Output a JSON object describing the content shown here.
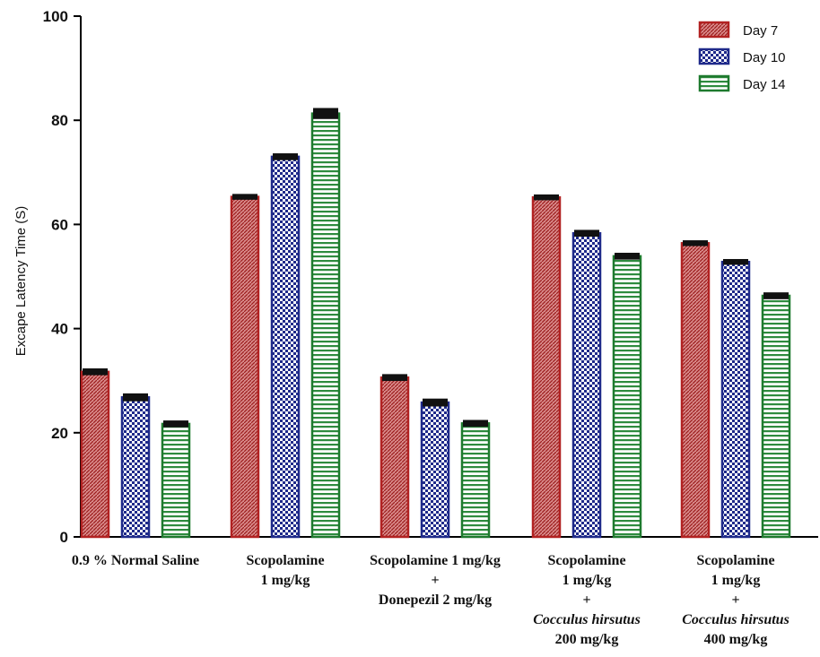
{
  "chart_data": {
    "type": "bar",
    "ylabel": "Excape Latency Time (S)",
    "ylim": [
      0,
      100
    ],
    "yticks": [
      0,
      20,
      40,
      60,
      80,
      100
    ],
    "grid": false,
    "legend_position": "top-right",
    "categories": [
      [
        "0.9 % Normal Saline"
      ],
      [
        "Scopolamine",
        "1 mg/kg"
      ],
      [
        "Scopolamine 1 mg/kg",
        "+",
        "Donepezil 2 mg/kg"
      ],
      [
        "Scopolamine",
        "1 mg/kg",
        "+",
        "Cocculus hirsutus",
        "200 mg/kg"
      ],
      [
        "Scopolamine",
        "1 mg/kg",
        "+",
        "Cocculus hirsutus",
        "400 mg/kg"
      ]
    ],
    "italic_lines": [
      "Cocculus hirsutus"
    ],
    "series": [
      {
        "name": "Day 7",
        "color": "#b22222",
        "pattern": "diagonal",
        "values": [
          31.7,
          65.3,
          30.6,
          65.2,
          56.4
        ],
        "errors": [
          0.4,
          0.3,
          0.4,
          0.3,
          0.3
        ]
      },
      {
        "name": "Day 10",
        "color": "#1f2a8a",
        "pattern": "checker",
        "values": [
          26.8,
          73.0,
          25.8,
          58.3,
          52.8
        ],
        "errors": [
          0.5,
          0.4,
          0.5,
          0.4,
          0.3
        ]
      },
      {
        "name": "Day 14",
        "color": "#1e7a2e",
        "pattern": "horizontal",
        "values": [
          21.7,
          81.3,
          21.8,
          53.9,
          46.3
        ],
        "errors": [
          0.4,
          0.8,
          0.4,
          0.4,
          0.4
        ]
      }
    ]
  }
}
